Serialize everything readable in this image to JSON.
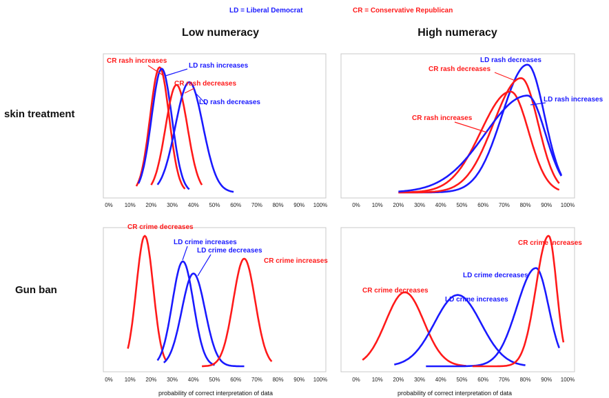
{
  "legend": {
    "ld": "LD = Liberal Democrat",
    "cr": "CR = Conservative Republican"
  },
  "columns": [
    "Low numeracy",
    "High numeracy"
  ],
  "rows": [
    "skin treatment",
    "Gun ban"
  ],
  "xlabel": "probability of correct interpretation of data",
  "colors": {
    "LD": "#1a1aff",
    "CR": "#ff1a1a"
  },
  "chart_data": [
    {
      "type": "line",
      "row": "skin treatment",
      "column": "Low numeracy",
      "xticks": [
        "0%",
        "10%",
        "20%",
        "30%",
        "40%",
        "50%",
        "60%",
        "70%",
        "80%",
        "90%",
        "100%"
      ],
      "xlim": [
        0,
        100
      ],
      "series": [
        {
          "name": "CR rash increases",
          "party": "CR",
          "peak": 24,
          "sd": 4.5,
          "height": 0.93,
          "range": [
            13,
            36
          ]
        },
        {
          "name": "LD rash increases",
          "party": "LD",
          "peak": 25,
          "sd": 4.8,
          "height": 0.92,
          "range": [
            14,
            38
          ]
        },
        {
          "name": "CR rash decreases",
          "party": "CR",
          "peak": 32,
          "sd": 5.2,
          "height": 0.8,
          "range": [
            20,
            44
          ]
        },
        {
          "name": "LD rash decreases",
          "party": "LD",
          "peak": 38,
          "sd": 6.5,
          "height": 0.82,
          "range": [
            23,
            59
          ]
        }
      ],
      "annotations": [
        {
          "text": "CR rash increases",
          "party": "CR"
        },
        {
          "text": "LD rash increases",
          "party": "LD"
        },
        {
          "text": "CR rash decreases",
          "party": "CR"
        },
        {
          "text": "LD rash decreases",
          "party": "LD"
        }
      ]
    },
    {
      "type": "line",
      "row": "skin treatment",
      "column": "High numeracy",
      "xticks": [
        "0%",
        "10%",
        "20%",
        "30%",
        "40%",
        "50%",
        "60%",
        "70%",
        "80%",
        "90%",
        "100%"
      ],
      "xlim": [
        0,
        100
      ],
      "series": [
        {
          "name": "LD rash decreases",
          "party": "LD",
          "peak": 81,
          "sd": 8.0,
          "sd_left": 12,
          "height": 0.95,
          "range": [
            20,
            97
          ]
        },
        {
          "name": "CR rash decreases",
          "party": "CR",
          "peak": 78,
          "sd": 8.0,
          "sd_left": 13,
          "height": 0.85,
          "range": [
            20,
            96
          ]
        },
        {
          "name": "CR rash increases",
          "party": "CR",
          "peak": 73,
          "sd": 8.5,
          "sd_left": 14,
          "height": 0.75,
          "range": [
            20,
            96
          ]
        },
        {
          "name": "LD rash increases",
          "party": "LD",
          "peak": 81,
          "sd": 8.5,
          "sd_left": 20,
          "height": 0.72,
          "range": [
            20,
            97
          ]
        }
      ],
      "annotations": [
        {
          "text": "LD rash decreases",
          "party": "LD"
        },
        {
          "text": "CR rash decreases",
          "party": "CR"
        },
        {
          "text": "LD rash increases",
          "party": "LD"
        },
        {
          "text": "CR rash increases",
          "party": "CR"
        }
      ]
    },
    {
      "type": "line",
      "row": "Gun ban",
      "column": "Low numeracy",
      "xticks": [
        "0%",
        "10%",
        "20%",
        "30%",
        "40%",
        "50%",
        "60%",
        "70%",
        "80%",
        "90%",
        "100%"
      ],
      "xlim": [
        0,
        100
      ],
      "series": [
        {
          "name": "CR crime decreases",
          "party": "CR",
          "peak": 17,
          "sd": 4.0,
          "height": 0.97,
          "range": [
            9,
            27
          ]
        },
        {
          "name": "LD crime increases",
          "party": "LD",
          "peak": 35,
          "sd": 5.0,
          "height": 0.78,
          "range": [
            23,
            50
          ]
        },
        {
          "name": "LD crime decreases",
          "party": "LD",
          "peak": 40,
          "sd": 5.5,
          "height": 0.69,
          "range": [
            26,
            64
          ]
        },
        {
          "name": "CR crime increases",
          "party": "CR",
          "peak": 64,
          "sd": 5.2,
          "height": 0.8,
          "range": [
            44,
            77
          ]
        }
      ],
      "annotations": [
        {
          "text": "CR crime decreases",
          "party": "CR"
        },
        {
          "text": "LD crime increases",
          "party": "LD"
        },
        {
          "text": "LD crime decreases",
          "party": "LD"
        },
        {
          "text": "CR crime increases",
          "party": "CR"
        }
      ]
    },
    {
      "type": "line",
      "row": "Gun ban",
      "column": "High numeracy",
      "xticks": [
        "0%",
        "10%",
        "20%",
        "30%",
        "40%",
        "50%",
        "60%",
        "70%",
        "80%",
        "90%",
        "100%"
      ],
      "xlim": [
        0,
        100
      ],
      "series": [
        {
          "name": "CR crime decreases",
          "party": "CR",
          "peak": 23,
          "sd": 9.0,
          "height": 0.55,
          "range": [
            3,
            52
          ]
        },
        {
          "name": "LD crime increases",
          "party": "LD",
          "peak": 48,
          "sd": 11.0,
          "height": 0.53,
          "range": [
            18,
            80
          ]
        },
        {
          "name": "LD crime decreases",
          "party": "LD",
          "peak": 85,
          "sd": 6.0,
          "sd_left": 9,
          "height": 0.73,
          "range": [
            33,
            96
          ]
        },
        {
          "name": "CR crime increases",
          "party": "CR",
          "peak": 91,
          "sd": 3.8,
          "sd_left": 6,
          "height": 0.97,
          "range": [
            55,
            98
          ]
        }
      ],
      "annotations": [
        {
          "text": "CR crime increases",
          "party": "CR"
        },
        {
          "text": "LD crime decreases",
          "party": "LD"
        },
        {
          "text": "CR crime decreases",
          "party": "CR"
        },
        {
          "text": "LD crime increases",
          "party": "LD"
        }
      ]
    }
  ]
}
